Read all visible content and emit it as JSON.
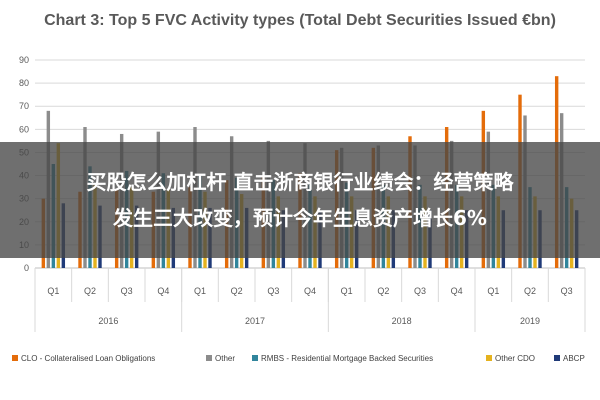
{
  "chart_data": {
    "type": "bar",
    "title": "Chart 3: Top 5 FVC Activity types (Total Debt Securities Issued €bn)",
    "ylim": [
      0,
      90
    ],
    "yticks": [
      0,
      10,
      20,
      30,
      40,
      50,
      60,
      70,
      80,
      90
    ],
    "grid": true,
    "legend_position": "bottom",
    "categories": [
      "Q1",
      "Q2",
      "Q3",
      "Q4",
      "Q1",
      "Q2",
      "Q3",
      "Q4",
      "Q1",
      "Q2",
      "Q3",
      "Q4",
      "Q1",
      "Q2",
      "Q3"
    ],
    "year_groups": [
      {
        "label": "2016",
        "count": 4
      },
      {
        "label": "2017",
        "count": 4
      },
      {
        "label": "2018",
        "count": 4
      },
      {
        "label": "2019",
        "count": 3
      }
    ],
    "series": [
      {
        "name": "CLO - Collateralised Loan Obligations",
        "color": "#E46C0A",
        "values": [
          30,
          33,
          34,
          33,
          35,
          38,
          40,
          41,
          51,
          52,
          57,
          61,
          68,
          75,
          83
        ]
      },
      {
        "name": "Other",
        "color": "#8C8C8C",
        "values": [
          68,
          61,
          58,
          59,
          61,
          57,
          55,
          54,
          52,
          53,
          53,
          55,
          59,
          66,
          67
        ]
      },
      {
        "name": "RMBS - Residential Mortgage Backed Securities",
        "color": "#31859C",
        "values": [
          45,
          44,
          42,
          41,
          40,
          39,
          38,
          37,
          37,
          36,
          36,
          36,
          36,
          35,
          35
        ]
      },
      {
        "name": "Other CDO",
        "color": "#E5B21E",
        "values": [
          54,
          36,
          35,
          34,
          33,
          32,
          31,
          31,
          31,
          31,
          31,
          31,
          31,
          31,
          30
        ]
      },
      {
        "name": "ABCP",
        "color": "#1F3A78",
        "values": [
          28,
          27,
          27,
          26,
          26,
          26,
          25,
          25,
          25,
          25,
          25,
          25,
          25,
          25,
          25
        ]
      }
    ]
  },
  "overlay": {
    "headline_line1": "买股怎么加杠杆 直击浙商银行业绩会：经营策略",
    "headline_line2": "发生三大改变，预计今年生息资产增长6%"
  }
}
